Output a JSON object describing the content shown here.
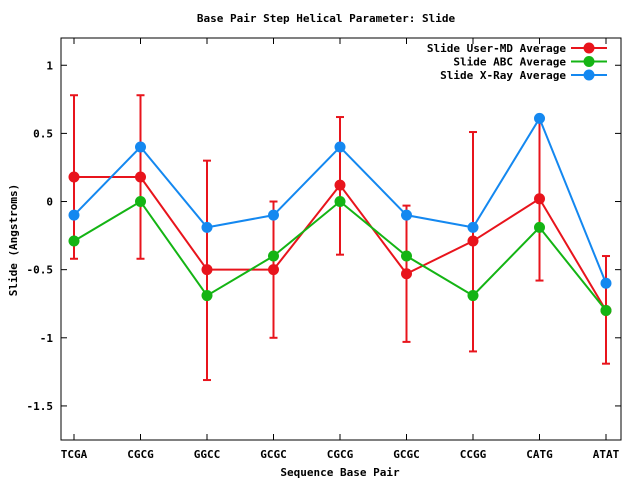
{
  "chart_data": {
    "type": "line",
    "title": "Base Pair Step Helical Parameter: Slide",
    "xlabel": "Sequence Base Pair",
    "ylabel": "Slide (Angstroms)",
    "categories": [
      "TCGA",
      "CGCG",
      "GGCC",
      "GCGC",
      "CGCG",
      "GCGC",
      "CCGG",
      "CATG",
      "ATAT"
    ],
    "ylim": [
      -1.75,
      1.2
    ],
    "yticks": [
      1,
      0.5,
      0,
      -0.5,
      -1,
      -1.5
    ],
    "ytick_labels": [
      "1",
      "0.5",
      "0",
      "-0.5",
      "-1",
      "-1.5"
    ],
    "grid": false,
    "legend_position": "top-right",
    "series": [
      {
        "name": "Slide User-MD Average",
        "color": "#e8141c",
        "values": [
          0.18,
          0.18,
          -0.5,
          -0.5,
          0.12,
          -0.53,
          -0.29,
          0.02,
          -0.8
        ],
        "error_low": [
          -0.42,
          -0.42,
          -1.31,
          -1.0,
          -0.39,
          -1.03,
          -1.1,
          -0.58,
          -1.19
        ],
        "error_high": [
          0.78,
          0.78,
          0.3,
          0.0,
          0.62,
          -0.03,
          0.51,
          0.62,
          -0.4
        ]
      },
      {
        "name": "Slide ABC Average",
        "color": "#14b414",
        "values": [
          -0.29,
          0.0,
          -0.69,
          -0.4,
          0.0,
          -0.4,
          -0.69,
          -0.19,
          -0.8
        ]
      },
      {
        "name": "Slide X-Ray Average",
        "color": "#1488f0",
        "values": [
          -0.1,
          0.4,
          -0.19,
          -0.1,
          0.4,
          -0.1,
          -0.19,
          0.61,
          -0.6
        ]
      }
    ]
  }
}
